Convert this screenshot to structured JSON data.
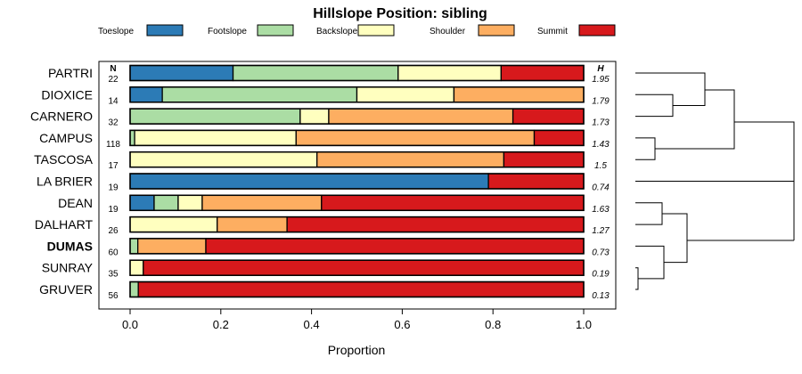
{
  "chart_data": {
    "type": "bar",
    "stacked": true,
    "orientation": "horizontal",
    "title": "Hillslope Position: sibling",
    "xlabel": "Proportion",
    "ylabel": "",
    "xlim": [
      0,
      1
    ],
    "x_ticks": [
      "0.0",
      "0.2",
      "0.4",
      "0.6",
      "0.8",
      "1.0"
    ],
    "legend_position": "top",
    "n_header": "N",
    "h_header": "H",
    "series": [
      {
        "name": "Toeslope",
        "color": "#2c7bb6"
      },
      {
        "name": "Footslope",
        "color": "#abdda4"
      },
      {
        "name": "Backslope",
        "color": "#ffffbf"
      },
      {
        "name": "Shoulder",
        "color": "#fdae61"
      },
      {
        "name": "Summit",
        "color": "#d7191c"
      }
    ],
    "rows": [
      {
        "label": "PARTRI",
        "n": "22",
        "h": "1.95",
        "values": [
          0.227,
          0.364,
          0.227,
          0.0,
          0.182
        ]
      },
      {
        "label": "DIOXICE",
        "n": "14",
        "h": "1.79",
        "values": [
          0.071,
          0.429,
          0.214,
          0.286,
          0.0
        ]
      },
      {
        "label": "CARNERO",
        "n": "32",
        "h": "1.73",
        "values": [
          0.0,
          0.375,
          0.063,
          0.406,
          0.156
        ]
      },
      {
        "label": "CAMPUS",
        "n": "118",
        "h": "1.43",
        "values": [
          0.0,
          0.01,
          0.356,
          0.525,
          0.109
        ]
      },
      {
        "label": "TASCOSA",
        "n": "17",
        "h": "1.5",
        "values": [
          0.0,
          0.0,
          0.412,
          0.412,
          0.176
        ]
      },
      {
        "label": "LA BRIER",
        "n": "19",
        "h": "0.74",
        "values": [
          0.79,
          0.0,
          0.0,
          0.0,
          0.21
        ]
      },
      {
        "label": "DEAN",
        "n": "19",
        "h": "1.63",
        "values": [
          0.053,
          0.053,
          0.053,
          0.263,
          0.578
        ]
      },
      {
        "label": "DALHART",
        "n": "26",
        "h": "1.27",
        "values": [
          0.0,
          0.0,
          0.192,
          0.154,
          0.654
        ]
      },
      {
        "label": "DUMAS",
        "n": "60",
        "h": "0.73",
        "values": [
          0.0,
          0.017,
          0.0,
          0.15,
          0.833
        ],
        "bold": true
      },
      {
        "label": "SUNRAY",
        "n": "35",
        "h": "0.19",
        "values": [
          0.0,
          0.0,
          0.029,
          0.0,
          0.971
        ]
      },
      {
        "label": "GRUVER",
        "n": "56",
        "h": "0.13",
        "values": [
          0.0,
          0.018,
          0.0,
          0.0,
          0.982
        ]
      }
    ]
  }
}
